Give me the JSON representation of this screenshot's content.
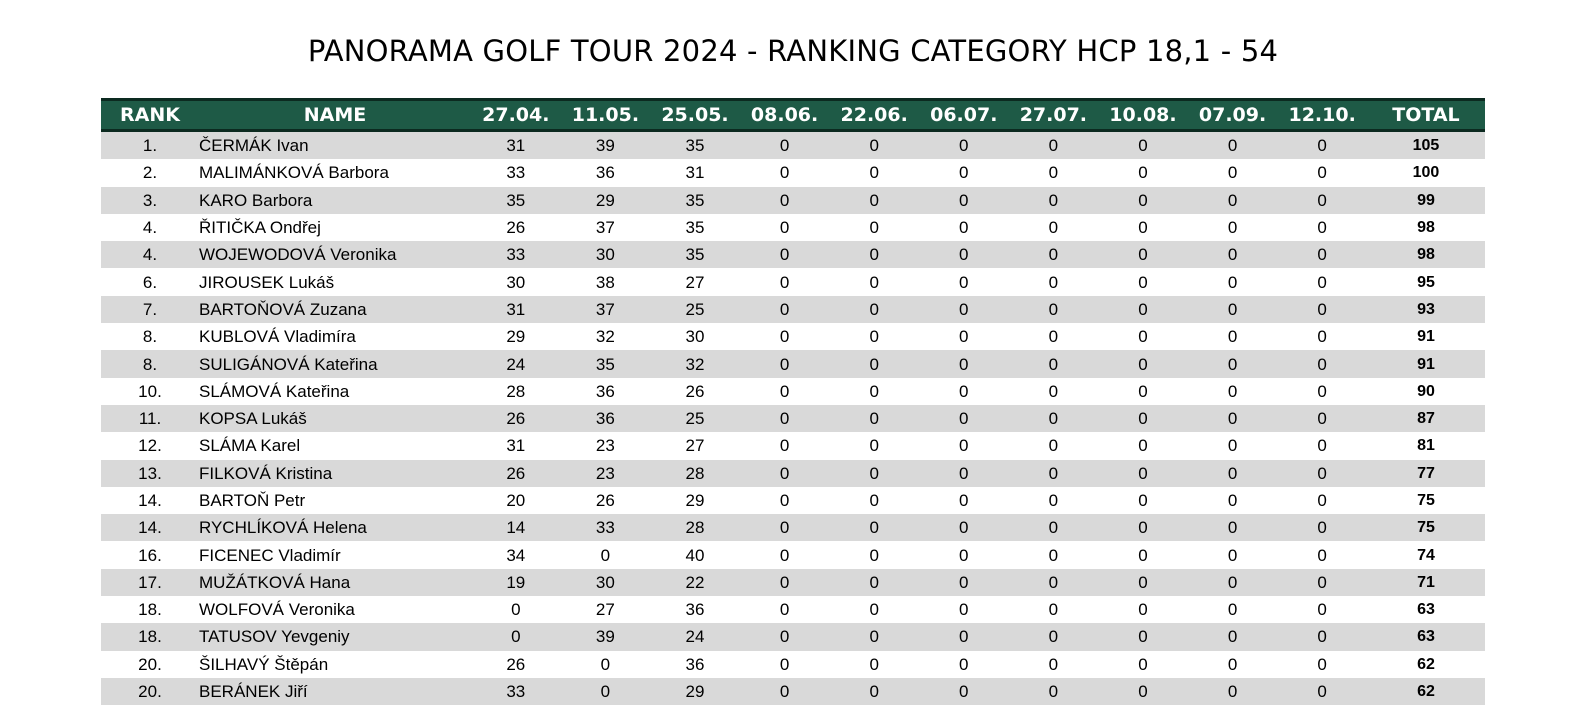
{
  "title": "PANORAMA GOLF TOUR 2024 - RANKING CATEGORY HCP 18,1 - 54",
  "headers": {
    "rank": "RANK",
    "name": "NAME",
    "rounds": [
      "27.04.",
      "11.05.",
      "25.05.",
      "08.06.",
      "22.06.",
      "06.07.",
      "27.07.",
      "10.08.",
      "07.09.",
      "12.10."
    ],
    "total": "TOTAL"
  },
  "rows": [
    {
      "rank": "1.",
      "name": "ČERMÁK Ivan",
      "scores": [
        31,
        39,
        35,
        0,
        0,
        0,
        0,
        0,
        0,
        0
      ],
      "total": 105
    },
    {
      "rank": "2.",
      "name": "MALIMÁNKOVÁ Barbora",
      "scores": [
        33,
        36,
        31,
        0,
        0,
        0,
        0,
        0,
        0,
        0
      ],
      "total": 100
    },
    {
      "rank": "3.",
      "name": "KARO Barbora",
      "scores": [
        35,
        29,
        35,
        0,
        0,
        0,
        0,
        0,
        0,
        0
      ],
      "total": 99
    },
    {
      "rank": "4.",
      "name": "ŘITIČKA Ondřej",
      "scores": [
        26,
        37,
        35,
        0,
        0,
        0,
        0,
        0,
        0,
        0
      ],
      "total": 98
    },
    {
      "rank": "4.",
      "name": "WOJEWODOVÁ Veronika",
      "scores": [
        33,
        30,
        35,
        0,
        0,
        0,
        0,
        0,
        0,
        0
      ],
      "total": 98
    },
    {
      "rank": "6.",
      "name": "JIROUSEK Lukáš",
      "scores": [
        30,
        38,
        27,
        0,
        0,
        0,
        0,
        0,
        0,
        0
      ],
      "total": 95
    },
    {
      "rank": "7.",
      "name": "BARTOŇOVÁ Zuzana",
      "scores": [
        31,
        37,
        25,
        0,
        0,
        0,
        0,
        0,
        0,
        0
      ],
      "total": 93
    },
    {
      "rank": "8.",
      "name": "KUBLOVÁ Vladimíra",
      "scores": [
        29,
        32,
        30,
        0,
        0,
        0,
        0,
        0,
        0,
        0
      ],
      "total": 91
    },
    {
      "rank": "8.",
      "name": "SULIGÁNOVÁ Kateřina",
      "scores": [
        24,
        35,
        32,
        0,
        0,
        0,
        0,
        0,
        0,
        0
      ],
      "total": 91
    },
    {
      "rank": "10.",
      "name": "SLÁMOVÁ Kateřina",
      "scores": [
        28,
        36,
        26,
        0,
        0,
        0,
        0,
        0,
        0,
        0
      ],
      "total": 90
    },
    {
      "rank": "11.",
      "name": "KOPSA Lukáš",
      "scores": [
        26,
        36,
        25,
        0,
        0,
        0,
        0,
        0,
        0,
        0
      ],
      "total": 87
    },
    {
      "rank": "12.",
      "name": "SLÁMA Karel",
      "scores": [
        31,
        23,
        27,
        0,
        0,
        0,
        0,
        0,
        0,
        0
      ],
      "total": 81
    },
    {
      "rank": "13.",
      "name": "FILKOVÁ Kristina",
      "scores": [
        26,
        23,
        28,
        0,
        0,
        0,
        0,
        0,
        0,
        0
      ],
      "total": 77
    },
    {
      "rank": "14.",
      "name": "BARTOŇ Petr",
      "scores": [
        20,
        26,
        29,
        0,
        0,
        0,
        0,
        0,
        0,
        0
      ],
      "total": 75
    },
    {
      "rank": "14.",
      "name": "RYCHLÍKOVÁ Helena",
      "scores": [
        14,
        33,
        28,
        0,
        0,
        0,
        0,
        0,
        0,
        0
      ],
      "total": 75
    },
    {
      "rank": "16.",
      "name": "FICENEC Vladimír",
      "scores": [
        34,
        0,
        40,
        0,
        0,
        0,
        0,
        0,
        0,
        0
      ],
      "total": 74
    },
    {
      "rank": "17.",
      "name": "MUŽÁTKOVÁ Hana",
      "scores": [
        19,
        30,
        22,
        0,
        0,
        0,
        0,
        0,
        0,
        0
      ],
      "total": 71
    },
    {
      "rank": "18.",
      "name": "WOLFOVÁ Veronika",
      "scores": [
        0,
        27,
        36,
        0,
        0,
        0,
        0,
        0,
        0,
        0
      ],
      "total": 63
    },
    {
      "rank": "18.",
      "name": "TATUSOV Yevgeniy",
      "scores": [
        0,
        39,
        24,
        0,
        0,
        0,
        0,
        0,
        0,
        0
      ],
      "total": 63
    },
    {
      "rank": "20.",
      "name": "ŠILHAVÝ Štěpán",
      "scores": [
        26,
        0,
        36,
        0,
        0,
        0,
        0,
        0,
        0,
        0
      ],
      "total": 62
    },
    {
      "rank": "20.",
      "name": "BERÁNEK Jiří",
      "scores": [
        33,
        0,
        29,
        0,
        0,
        0,
        0,
        0,
        0,
        0
      ],
      "total": 62
    }
  ]
}
